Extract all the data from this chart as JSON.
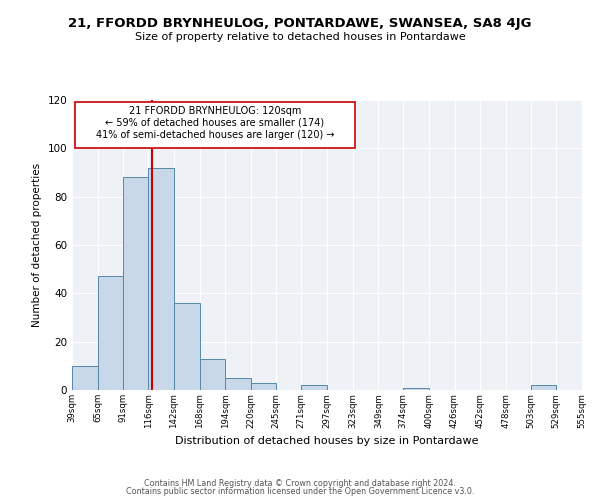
{
  "title": "21, FFORDD BRYNHEULOG, PONTARDAWE, SWANSEA, SA8 4JG",
  "subtitle": "Size of property relative to detached houses in Pontardawe",
  "xlabel": "Distribution of detached houses by size in Pontardawe",
  "ylabel": "Number of detached properties",
  "bin_edges": [
    39,
    65,
    91,
    116,
    142,
    168,
    194,
    220,
    245,
    271,
    297,
    323,
    349,
    374,
    400,
    426,
    452,
    478,
    503,
    529,
    555
  ],
  "bar_heights": [
    10,
    47,
    88,
    92,
    36,
    13,
    5,
    3,
    0,
    2,
    0,
    0,
    0,
    1,
    0,
    0,
    0,
    0,
    2,
    0
  ],
  "bar_color": "#c8d8e8",
  "bar_edge_color": "#5588aa",
  "property_size": 120,
  "annotation_line1": "21 FFORDD BRYNHEULOG: 120sqm",
  "annotation_line2": "← 59% of detached houses are smaller (174)",
  "annotation_line3": "41% of semi-detached houses are larger (120) →",
  "red_line_color": "#cc0000",
  "box_edge_color": "#cc0000",
  "ylim": [
    0,
    120
  ],
  "yticks": [
    0,
    20,
    40,
    60,
    80,
    100,
    120
  ],
  "background_color": "#eef2f7",
  "footer_line1": "Contains HM Land Registry data © Crown copyright and database right 2024.",
  "footer_line2": "Contains public sector information licensed under the Open Government Licence v3.0.",
  "tick_labels": [
    "39sqm",
    "65sqm",
    "91sqm",
    "116sqm",
    "142sqm",
    "168sqm",
    "194sqm",
    "220sqm",
    "245sqm",
    "271sqm",
    "297sqm",
    "323sqm",
    "349sqm",
    "374sqm",
    "400sqm",
    "426sqm",
    "452sqm",
    "478sqm",
    "503sqm",
    "529sqm",
    "555sqm"
  ]
}
